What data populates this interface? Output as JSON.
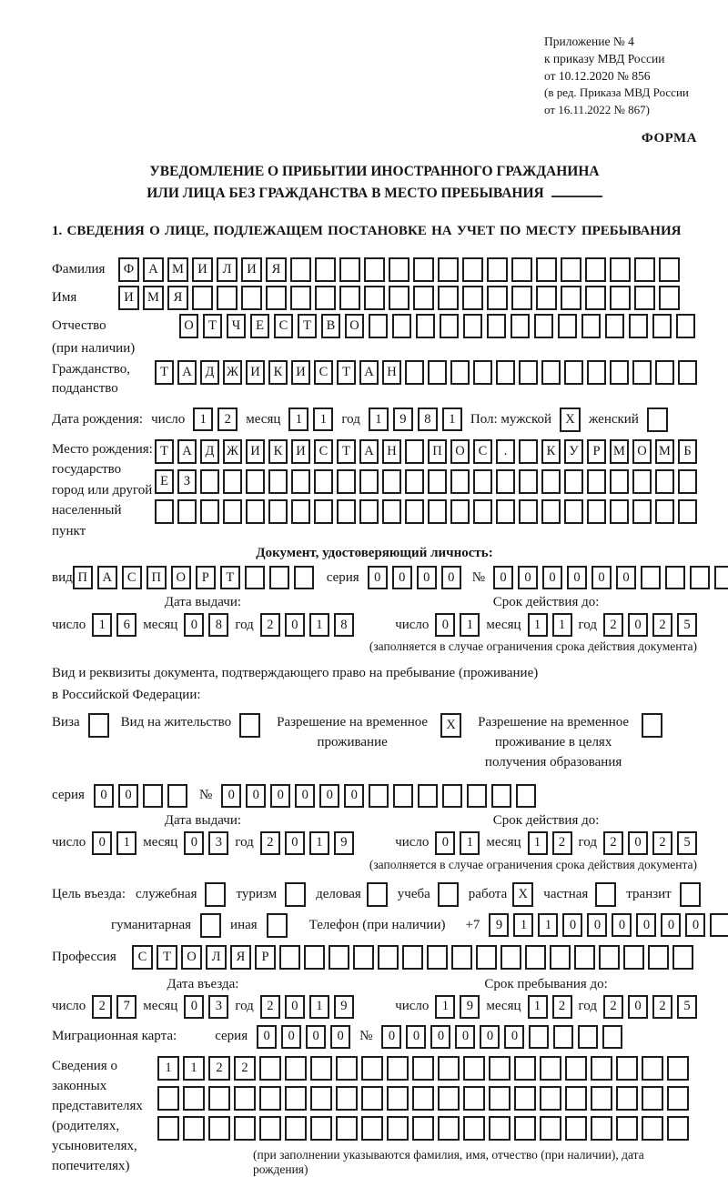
{
  "header": {
    "line1": "Приложение № 4",
    "line2": "к приказу МВД России",
    "line3": "от 10.12.2020 № 856",
    "line4": "(в ред. Приказа МВД России",
    "line5": "от 16.11.2022 № 867)",
    "form_label": "ФОРМА"
  },
  "title": {
    "line1": "УВЕДОМЛЕНИЕ О ПРИБЫТИИ ИНОСТРАННОГО ГРАЖДАНИНА",
    "line2": "ИЛИ ЛИЦА БЕЗ ГРАЖДАНСТВА В МЕСТО ПРЕБЫВАНИЯ"
  },
  "section1": {
    "heading": "1. СВЕДЕНИЯ О ЛИЦЕ, ПОДЛЕЖАЩЕМ ПОСТАНОВКЕ НА УЧЕТ ПО МЕСТУ ПРЕБЫВАНИЯ",
    "surname": {
      "label": "Фамилия",
      "cells": {
        "value": "ФАМИЛИЯ",
        "length": 23
      }
    },
    "firstname": {
      "label": "Имя",
      "cells": {
        "value": "ИМЯ",
        "length": 23
      }
    },
    "patronymic": {
      "label": "Отчество",
      "note": "(при наличии)",
      "cells": {
        "value": "ОТЧЕСТВО",
        "length": 22
      }
    },
    "citizenship": {
      "label_line1": "Гражданство,",
      "label_line2": "подданство",
      "cells": {
        "value": "ТАДЖИКИСТАН",
        "length": 24
      }
    },
    "birth_date": {
      "label": "Дата рождения:",
      "day_label": "число",
      "day": "12",
      "month_label": "месяц",
      "month": "11",
      "year_label": "год",
      "year": "1981",
      "sex_label": "Пол: мужской",
      "male_checked": "X",
      "female_label": "женский",
      "female_checked": ""
    },
    "birth_place": {
      "label_line1": "Место рождения:",
      "label_line2": "государство",
      "label_line3": "город или другой",
      "label_line4": "населенный пункт",
      "row1": {
        "value": "ТАДЖИКИСТАН ПОС. КУРМОМБ",
        "length": 24
      },
      "row2": {
        "value": "ЕЗ",
        "length": 24
      },
      "row3": {
        "value": "",
        "length": 24
      }
    }
  },
  "id_doc": {
    "heading": "Документ, удостоверяющий личность:",
    "type_label": "вид",
    "type_cells": {
      "value": "ПАСПОРТ",
      "length": 10
    },
    "series_label": "серия",
    "series_cells": "0000",
    "number_label": "№",
    "number_cells": {
      "value": "000000",
      "length": 10
    },
    "issue": {
      "heading": "Дата выдачи:",
      "day_label": "число",
      "day": "16",
      "month_label": "месяц",
      "month": "08",
      "year_label": "год",
      "year": "2018"
    },
    "expiry": {
      "heading": "Срок действия до:",
      "day_label": "число",
      "day": "01",
      "month_label": "месяц",
      "month": "11",
      "year_label": "год",
      "year": "2025"
    },
    "note": "(заполняется в случае ограничения срока действия документа)"
  },
  "stay_doc": {
    "intro_line1": "Вид и реквизиты документа, подтверждающего право на пребывание (проживание)",
    "intro_line2": "в Российской Федерации:",
    "options": [
      {
        "label": "Виза",
        "checked": ""
      },
      {
        "label": "Вид на жительство",
        "checked": ""
      },
      {
        "label": "Разрешение на временное проживание",
        "checked": "X"
      },
      {
        "label": "Разрешение на временное проживание в целях получения образования",
        "checked": ""
      }
    ],
    "series_label": "серия",
    "series_cells": {
      "value": "00",
      "length": 4
    },
    "number_label": "№",
    "number_cells": {
      "value": "000000",
      "length": 13
    },
    "issue": {
      "heading": "Дата выдачи:",
      "day_label": "число",
      "day": "01",
      "month_label": "месяц",
      "month": "03",
      "year_label": "год",
      "year": "2019"
    },
    "expiry": {
      "heading": "Срок действия до:",
      "day_label": "число",
      "day": "01",
      "month_label": "месяц",
      "month": "12",
      "year_label": "год",
      "year": "2025"
    },
    "note": "(заполняется в случае ограничения срока действия документа)"
  },
  "visit": {
    "purpose_label": "Цель въезда:",
    "purposes_row1": [
      {
        "label": "служебная",
        "checked": ""
      },
      {
        "label": "туризм",
        "checked": ""
      },
      {
        "label": "деловая",
        "checked": ""
      },
      {
        "label": "учеба",
        "checked": ""
      },
      {
        "label": "работа",
        "checked": "X"
      },
      {
        "label": "частная",
        "checked": ""
      },
      {
        "label": "транзит",
        "checked": ""
      }
    ],
    "purposes_row2": [
      {
        "label": "гуманитарная",
        "checked": ""
      },
      {
        "label": "иная",
        "checked": ""
      }
    ],
    "phone_label": "Телефон (при наличии)",
    "phone_prefix": "+7",
    "phone_cells": {
      "value": "911000000",
      "length": 10
    },
    "profession": {
      "label": "Профессия",
      "cells": {
        "value": "СТОЛЯР",
        "length": 23
      }
    },
    "entry_date": {
      "heading": "Дата въезда:",
      "day_label": "число",
      "day": "27",
      "month_label": "месяц",
      "month": "03",
      "year_label": "год",
      "year": "2019"
    },
    "stay_until": {
      "heading": "Срок пребывания до:",
      "day_label": "число",
      "day": "19",
      "month_label": "месяц",
      "month": "12",
      "year_label": "год",
      "year": "2025"
    },
    "migration_card": {
      "label": "Миграционная карта:",
      "series_label": "серия",
      "series_cells": "0000",
      "number_label": "№",
      "number_cells": {
        "value": "000000",
        "length": 10
      }
    }
  },
  "representatives": {
    "label_line1": "Сведения о",
    "label_line2": "законных",
    "label_line3": "представителях",
    "label_line4": "(родителях,",
    "label_line5": "усыновителях,",
    "label_line6": "попечителях)",
    "row1": {
      "value": "1122",
      "length": 21
    },
    "row2": {
      "value": "",
      "length": 21
    },
    "row3": {
      "value": "",
      "length": 21
    },
    "note": "(при заполнении указываются фамилия, имя, отчество (при наличии), дата рождения)"
  }
}
